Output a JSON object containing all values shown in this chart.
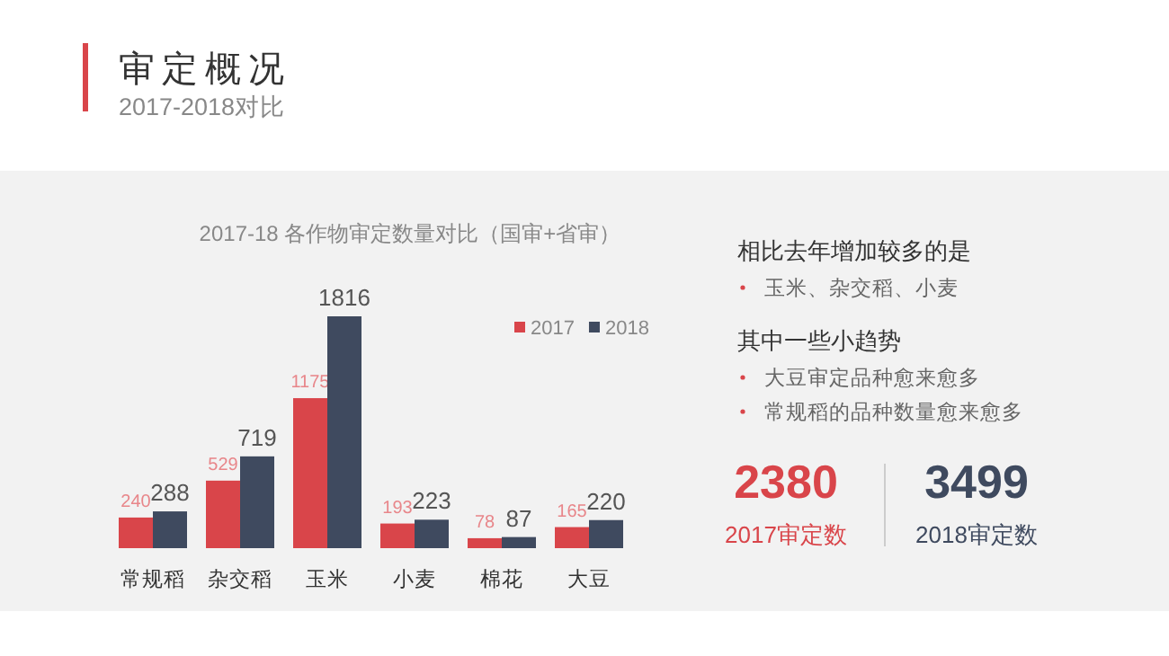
{
  "chart_data": [
    {
      "type": "other",
      "title": "审定概况",
      "subtitle": "2017-2018对比"
    },
    {
      "type": "bar",
      "title": "2017-18 各作物审定数量对比（国审+省审）",
      "categories": [
        "常规稻",
        "杂交稻",
        "玉米",
        "小麦",
        "棉花",
        "大豆"
      ],
      "series": [
        {
          "name": "2017",
          "color": "#d9454a",
          "values": [
            240,
            529,
            1175,
            193,
            78,
            165
          ]
        },
        {
          "name": "2018",
          "color": "#3f4a5f",
          "values": [
            288,
            719,
            1816,
            223,
            87,
            220
          ]
        }
      ],
      "data_labels": true,
      "legend": "top right"
    },
    {
      "type": "other",
      "annotations": [
        "相比去年增加较多的是",
        "玉米、杂交稻、小麦",
        "其中一些小趋势",
        "大豆审定品种愈来愈多",
        "常规稻的品种数量愈来愈多",
        "2380",
        "2017审定数",
        "3499",
        "2018审定数"
      ]
    }
  ]
}
